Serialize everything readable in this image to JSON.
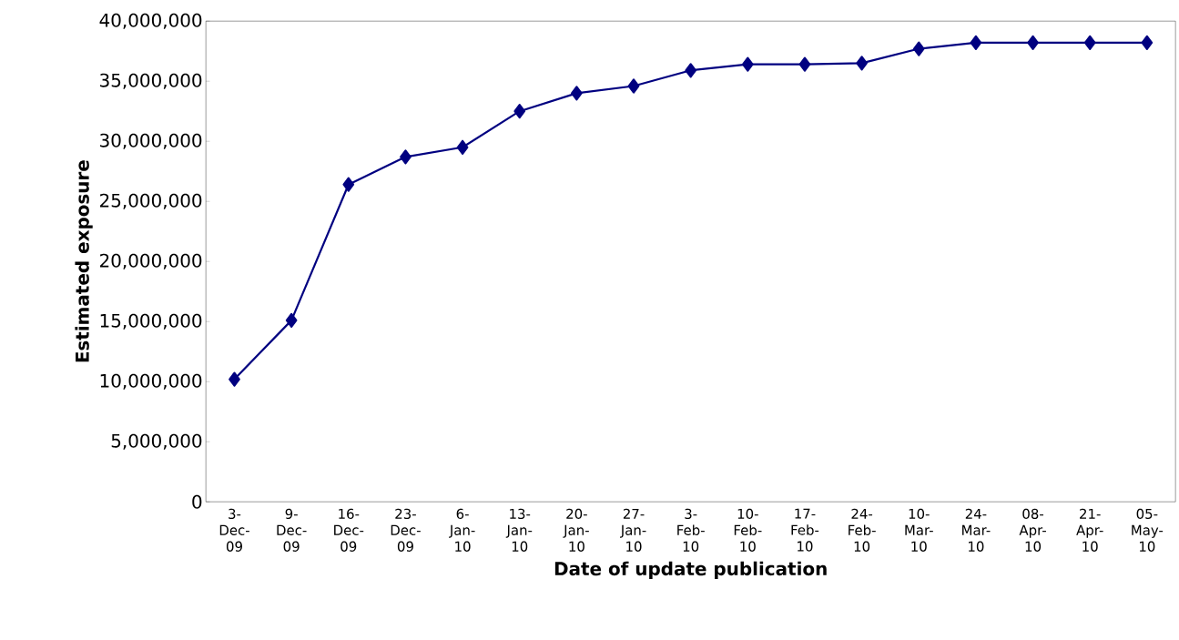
{
  "chart_data": {
    "type": "line",
    "xlabel": "Date of update publication",
    "ylabel": "Estimated exposure",
    "categories": [
      "3-Dec-09",
      "9-Dec-09",
      "16-Dec-09",
      "23-Dec-09",
      "6-Jan-10",
      "13-Jan-10",
      "20-Jan-10",
      "27-Jan-10",
      "3-Feb-10",
      "10-Feb-10",
      "17-Feb-10",
      "24-Feb-10",
      "10-Mar-10",
      "24-Mar-10",
      "08-Apr-10",
      "21-Apr-10",
      "05-May-10"
    ],
    "series": [
      {
        "color": "#000080",
        "values": [
          10200000,
          15100000,
          26400000,
          28700000,
          29500000,
          32500000,
          34000000,
          34600000,
          35900000,
          36400000,
          36400000,
          36500000,
          37700000,
          38200000,
          38200000,
          38200000,
          38200000
        ]
      }
    ],
    "ylim": [
      0,
      40000000
    ],
    "yticks": [
      0,
      {
        "value": 5000000,
        "label": "5,000,000"
      },
      {
        "value": 10000000,
        "label": "10,000,000"
      },
      {
        "value": 15000000,
        "label": "15,000,000"
      },
      {
        "value": 20000000,
        "label": "20,000,000"
      },
      {
        "value": 25000000,
        "label": "25,000,000"
      },
      {
        "value": 30000000,
        "label": "30,000,000"
      },
      {
        "value": 35000000,
        "label": "35,000,000"
      },
      {
        "value": 40000000,
        "label": "40,000,000"
      }
    ],
    "grid": false,
    "marker": "diamond",
    "line_style": "solid"
  }
}
